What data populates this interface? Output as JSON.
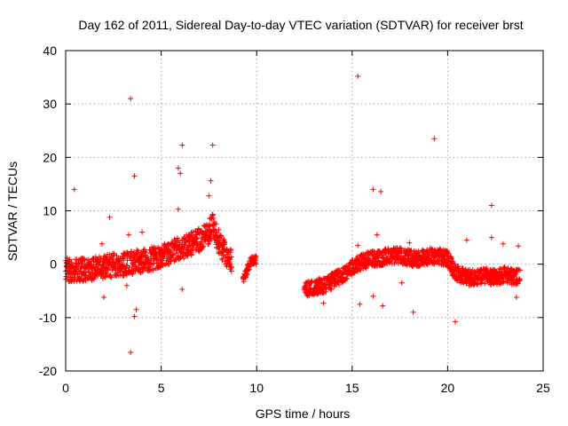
{
  "chart_data": {
    "type": "scatter",
    "title": "Day 162 of 2011, Sidereal Day-to-day VTEC variation (SDTVAR) for receiver brst",
    "xlabel": "GPS time / hours",
    "ylabel": "SDTVAR / TECUs",
    "xlim": [
      0,
      25
    ],
    "ylim": [
      -20,
      40
    ],
    "x_ticks": [
      0,
      5,
      10,
      15,
      20,
      25
    ],
    "y_ticks": [
      -20,
      -10,
      0,
      10,
      20,
      30,
      40
    ],
    "x_tick_labels": [
      "0",
      "5",
      "10",
      "15",
      "20",
      "25"
    ],
    "y_tick_labels": [
      "-20",
      "-10",
      "0",
      "10",
      "20",
      "30",
      "40"
    ],
    "grid": true,
    "marker": "+",
    "series": [
      {
        "name": "SDTVAR",
        "color": "#ff0000",
        "band_segments": [
          {
            "x": [
              0.0,
              0.5,
              1.0,
              1.5,
              2.0,
              2.5,
              3.0,
              3.5,
              4.0,
              4.5,
              5.0,
              5.5,
              6.0,
              6.5,
              7.0,
              7.5,
              7.7,
              7.9,
              8.2,
              8.5,
              8.7
            ],
            "center": [
              -1.0,
              -1.2,
              -1.0,
              -0.8,
              -0.5,
              -0.2,
              0.0,
              0.3,
              0.6,
              1.0,
              1.5,
              2.2,
              3.0,
              3.6,
              4.5,
              6.0,
              7.5,
              5.0,
              3.0,
              1.0,
              0.5
            ],
            "spread": 2.2
          },
          {
            "x": [
              9.3,
              9.5,
              9.7,
              9.9,
              10.0
            ],
            "center": [
              -3.0,
              -1.0,
              0.5,
              0.8,
              0.8
            ],
            "spread": 0.8
          },
          {
            "x": [
              12.5,
              13.0,
              13.5,
              14.0,
              14.5,
              15.0,
              15.5,
              16.0,
              16.5,
              17.0,
              17.5,
              18.0,
              18.5,
              19.0,
              19.5,
              20.0,
              20.3,
              20.6,
              21.0,
              21.5,
              22.0,
              22.5,
              23.0,
              23.5,
              23.8
            ],
            "center": [
              -4.5,
              -4.5,
              -4.0,
              -3.0,
              -2.0,
              -0.5,
              0.5,
              1.0,
              1.2,
              1.5,
              1.6,
              1.2,
              1.0,
              1.5,
              1.5,
              1.0,
              -1.0,
              -2.0,
              -2.5,
              -2.5,
              -2.2,
              -2.5,
              -2.0,
              -2.5,
              -2.0
            ],
            "spread": 1.5
          }
        ],
        "outliers": [
          {
            "x": 0.45,
            "y": 14.0
          },
          {
            "x": 2.3,
            "y": 8.8
          },
          {
            "x": 2.0,
            "y": -6.2
          },
          {
            "x": 3.4,
            "y": 31.0
          },
          {
            "x": 3.6,
            "y": 16.5
          },
          {
            "x": 3.4,
            "y": -16.5
          },
          {
            "x": 3.7,
            "y": -8.5
          },
          {
            "x": 3.6,
            "y": -9.8
          },
          {
            "x": 3.2,
            "y": -4.0
          },
          {
            "x": 3.3,
            "y": 5.5
          },
          {
            "x": 5.9,
            "y": 18.0
          },
          {
            "x": 6.1,
            "y": 22.3
          },
          {
            "x": 6.0,
            "y": 17.0
          },
          {
            "x": 5.9,
            "y": 10.3
          },
          {
            "x": 6.1,
            "y": -4.7
          },
          {
            "x": 7.7,
            "y": 22.3
          },
          {
            "x": 7.6,
            "y": 15.6
          },
          {
            "x": 7.5,
            "y": 12.8
          },
          {
            "x": 15.3,
            "y": 35.2
          },
          {
            "x": 15.4,
            "y": -7.5
          },
          {
            "x": 15.3,
            "y": 3.5
          },
          {
            "x": 16.1,
            "y": 14.0
          },
          {
            "x": 16.5,
            "y": 13.6
          },
          {
            "x": 16.3,
            "y": 5.5
          },
          {
            "x": 16.1,
            "y": -6.0
          },
          {
            "x": 16.6,
            "y": -7.8
          },
          {
            "x": 18.2,
            "y": -9.0
          },
          {
            "x": 19.3,
            "y": 23.5
          },
          {
            "x": 20.4,
            "y": -10.8
          },
          {
            "x": 22.3,
            "y": 11.0
          },
          {
            "x": 22.3,
            "y": 5.0
          },
          {
            "x": 22.9,
            "y": 3.8
          },
          {
            "x": 23.7,
            "y": 3.4
          },
          {
            "x": 23.6,
            "y": -6.2
          },
          {
            "x": 1.9,
            "y": 3.8
          },
          {
            "x": 4.0,
            "y": 6.0
          },
          {
            "x": 18.0,
            "y": 4.0
          },
          {
            "x": 13.5,
            "y": -7.3
          },
          {
            "x": 17.6,
            "y": -3.5
          },
          {
            "x": 21.0,
            "y": 4.5
          }
        ]
      }
    ]
  }
}
